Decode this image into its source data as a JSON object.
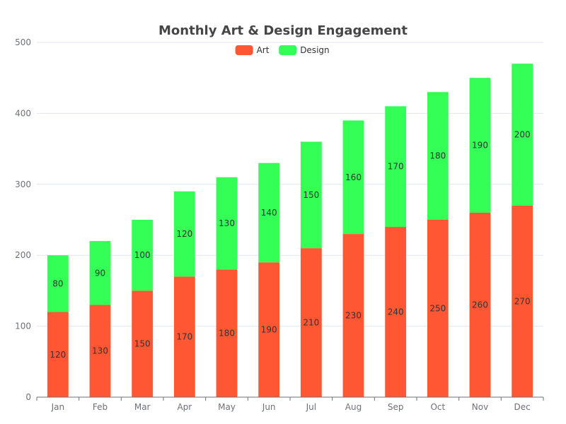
{
  "chart_data": {
    "type": "bar",
    "stacked": true,
    "title": "Monthly Art & Design Engagement",
    "categories": [
      "Jan",
      "Feb",
      "Mar",
      "Apr",
      "May",
      "Jun",
      "Jul",
      "Aug",
      "Sep",
      "Oct",
      "Nov",
      "Dec"
    ],
    "series": [
      {
        "name": "Art",
        "color": "#ff5733",
        "values": [
          120,
          130,
          150,
          170,
          180,
          190,
          210,
          230,
          240,
          250,
          260,
          270
        ]
      },
      {
        "name": "Design",
        "color": "#33ff57",
        "values": [
          80,
          90,
          100,
          120,
          130,
          140,
          150,
          160,
          170,
          180,
          190,
          200
        ]
      }
    ],
    "ylim": [
      0,
      500
    ],
    "yticks": [
      0,
      100,
      200,
      300,
      400,
      500
    ],
    "grid": true,
    "legend_position": "top-center",
    "data_labels": true
  }
}
